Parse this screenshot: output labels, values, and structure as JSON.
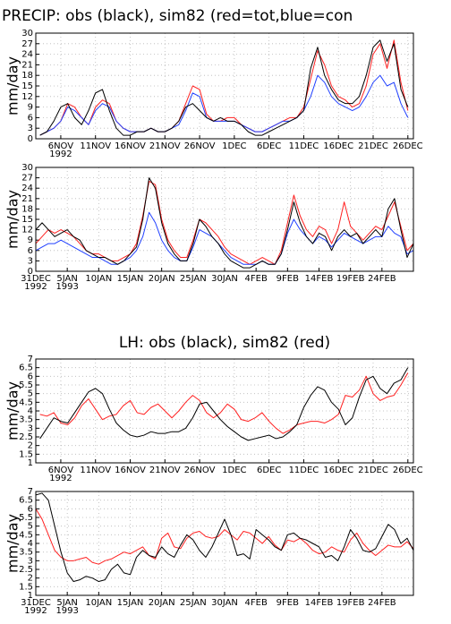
{
  "chart_data": [
    {
      "type": "line",
      "title": "PRECIP: obs (black), sim82 (red=tot,blue=con",
      "ylabel": "mm/day",
      "grid": true,
      "xlim": [
        -3.6,
        50.8
      ],
      "ylim": [
        0,
        30
      ],
      "yticks": [
        0,
        3,
        6,
        9,
        12,
        15,
        18,
        21,
        24,
        27,
        30
      ],
      "xticks": [
        {
          "value": 0,
          "label": "6NOV",
          "sublabel": "1992"
        },
        {
          "value": 5,
          "label": "11NOV"
        },
        {
          "value": 10,
          "label": "16NOV"
        },
        {
          "value": 15,
          "label": "21NOV"
        },
        {
          "value": 20,
          "label": "26NOV"
        },
        {
          "value": 25,
          "label": "1DEC"
        },
        {
          "value": 30,
          "label": "6DEC"
        },
        {
          "value": 35,
          "label": "11DEC"
        },
        {
          "value": 40,
          "label": "16DEC"
        },
        {
          "value": 45,
          "label": "21DEC"
        },
        {
          "value": 50,
          "label": "26DEC"
        }
      ],
      "x": [
        -3,
        -2,
        -1,
        0,
        1,
        2,
        3,
        4,
        5,
        6,
        7,
        8,
        9,
        10,
        11,
        12,
        13,
        14,
        15,
        16,
        17,
        18,
        19,
        20,
        21,
        22,
        23,
        24,
        25,
        26,
        27,
        28,
        29,
        30,
        31,
        32,
        33,
        34,
        35,
        36,
        37,
        38,
        39,
        40,
        41,
        42,
        43,
        44,
        45,
        46,
        47,
        48,
        49,
        50
      ],
      "series": [
        {
          "color": "#ff2020",
          "values": [
            1,
            2,
            3,
            5,
            10,
            9,
            6,
            4,
            9,
            11,
            10,
            5,
            3,
            2,
            2,
            2,
            3,
            2,
            2,
            3,
            5,
            10,
            15,
            14,
            7,
            5,
            5,
            6,
            6,
            4,
            3,
            2,
            2,
            3,
            4,
            5,
            6,
            6,
            9,
            17,
            25,
            21,
            15,
            12,
            11,
            9,
            10,
            15,
            24,
            27,
            20,
            28,
            16,
            8
          ]
        },
        {
          "color": "#2040ff",
          "values": [
            1,
            2,
            3,
            5,
            9,
            8,
            6,
            4,
            8,
            10,
            9,
            5,
            3,
            2,
            2,
            2,
            3,
            2,
            2,
            3,
            4,
            8,
            13,
            12,
            6,
            5,
            5,
            5,
            5,
            4,
            3,
            2,
            2,
            3,
            4,
            5,
            5,
            6,
            8,
            12,
            18,
            16,
            12,
            10,
            9,
            8,
            9,
            12,
            16,
            18,
            15,
            16,
            10,
            6
          ]
        },
        {
          "color": "#000000",
          "values": [
            1,
            2,
            5,
            9,
            10,
            6,
            4,
            8,
            13,
            14,
            8,
            3,
            1,
            1,
            2,
            2,
            3,
            2,
            2,
            3,
            5,
            9,
            10,
            8,
            6,
            5,
            6,
            5,
            5,
            4,
            2,
            1,
            1,
            2,
            3,
            4,
            5,
            6,
            8,
            20,
            26,
            18,
            14,
            11,
            10,
            10,
            12,
            18,
            26,
            28,
            22,
            27,
            14,
            9
          ]
        }
      ]
    },
    {
      "type": "line",
      "ylabel": "mm/day",
      "grid": true,
      "xlim": [
        0,
        60
      ],
      "ylim": [
        0,
        30
      ],
      "yticks": [
        0,
        3,
        6,
        9,
        12,
        15,
        18,
        21,
        24,
        27,
        30
      ],
      "xticks": [
        {
          "value": 0,
          "label": "31DEC",
          "sublabel": "1992"
        },
        {
          "value": 5,
          "label": "5JAN",
          "sublabel": "1993"
        },
        {
          "value": 10,
          "label": "10JAN"
        },
        {
          "value": 15,
          "label": "15JAN"
        },
        {
          "value": 20,
          "label": "20JAN"
        },
        {
          "value": 25,
          "label": "25JAN"
        },
        {
          "value": 30,
          "label": "30JAN"
        },
        {
          "value": 35,
          "label": "4FEB"
        },
        {
          "value": 40,
          "label": "9FEB"
        },
        {
          "value": 45,
          "label": "14FEB"
        },
        {
          "value": 50,
          "label": "19FEB"
        },
        {
          "value": 55,
          "label": "24FEB"
        }
      ],
      "x": [
        0,
        1,
        2,
        3,
        4,
        5,
        6,
        7,
        8,
        9,
        10,
        11,
        12,
        13,
        14,
        15,
        16,
        17,
        18,
        19,
        20,
        21,
        22,
        23,
        24,
        25,
        26,
        27,
        28,
        29,
        30,
        31,
        32,
        33,
        34,
        35,
        36,
        37,
        38,
        39,
        40,
        41,
        42,
        43,
        44,
        45,
        46,
        47,
        48,
        49,
        50,
        51,
        52,
        53,
        54,
        55,
        56,
        57,
        58,
        59,
        60
      ],
      "series": [
        {
          "color": "#ff2020",
          "values": [
            8,
            10,
            12,
            11,
            12,
            11,
            10,
            8,
            6,
            5,
            5,
            4,
            3,
            3,
            4,
            5,
            8,
            16,
            26,
            25,
            15,
            9,
            6,
            4,
            4,
            9,
            15,
            14,
            12,
            10,
            7,
            5,
            4,
            3,
            2,
            3,
            4,
            3,
            2,
            6,
            14,
            22,
            16,
            12,
            10,
            13,
            12,
            8,
            12,
            20,
            13,
            11,
            9,
            11,
            13,
            12,
            16,
            20,
            13,
            6,
            8
          ]
        },
        {
          "color": "#2040ff",
          "values": [
            6,
            7,
            8,
            8,
            9,
            8,
            7,
            6,
            5,
            4,
            4,
            3,
            2,
            2,
            3,
            4,
            6,
            10,
            17,
            14,
            9,
            6,
            4,
            3,
            3,
            7,
            12,
            11,
            10,
            8,
            6,
            4,
            3,
            2,
            2,
            2,
            3,
            2,
            2,
            5,
            11,
            15,
            12,
            10,
            8,
            10,
            9,
            7,
            9,
            11,
            10,
            9,
            8,
            9,
            10,
            10,
            13,
            11,
            10,
            5,
            6
          ]
        },
        {
          "color": "#000000",
          "values": [
            12,
            14,
            12,
            10,
            11,
            12,
            10,
            9,
            6,
            5,
            4,
            4,
            3,
            2,
            3,
            5,
            7,
            15,
            27,
            24,
            14,
            8,
            5,
            3,
            3,
            8,
            15,
            13,
            10,
            8,
            5,
            3,
            2,
            1,
            1,
            2,
            3,
            2,
            2,
            5,
            12,
            20,
            14,
            10,
            8,
            11,
            10,
            6,
            10,
            12,
            10,
            11,
            8,
            10,
            12,
            10,
            18,
            21,
            12,
            4,
            8
          ]
        }
      ]
    },
    {
      "type": "line",
      "title": "LH: obs (black), sim82 (red)",
      "ylabel": "mm/day",
      "grid": true,
      "xlim": [
        -3.6,
        50.8
      ],
      "ylim": [
        1,
        7
      ],
      "yticks": [
        1,
        1.5,
        2,
        2.5,
        3,
        3.5,
        4,
        4.5,
        5,
        5.5,
        6,
        6.5,
        7
      ],
      "xticks": [
        {
          "value": 0,
          "label": "6NOV",
          "sublabel": "1992"
        },
        {
          "value": 5,
          "label": "11NOV"
        },
        {
          "value": 10,
          "label": "16NOV"
        },
        {
          "value": 15,
          "label": "21NOV"
        },
        {
          "value": 20,
          "label": "26NOV"
        },
        {
          "value": 25,
          "label": "1DEC"
        },
        {
          "value": 30,
          "label": "6DEC"
        },
        {
          "value": 35,
          "label": "11DEC"
        },
        {
          "value": 40,
          "label": "16DEC"
        },
        {
          "value": 45,
          "label": "21DEC"
        },
        {
          "value": 50,
          "label": "26DEC"
        }
      ],
      "x": [
        -3,
        -2,
        -1,
        0,
        1,
        2,
        3,
        4,
        5,
        6,
        7,
        8,
        9,
        10,
        11,
        12,
        13,
        14,
        15,
        16,
        17,
        18,
        19,
        20,
        21,
        22,
        23,
        24,
        25,
        26,
        27,
        28,
        29,
        30,
        31,
        32,
        33,
        34,
        35,
        36,
        37,
        38,
        39,
        40,
        41,
        42,
        43,
        44,
        45,
        46,
        47,
        48,
        49,
        50
      ],
      "series": [
        {
          "color": "#ff2020",
          "values": [
            3.8,
            3.7,
            3.9,
            3.3,
            3.2,
            3.6,
            4.3,
            4.7,
            4.1,
            3.5,
            3.7,
            3.8,
            4.3,
            4.6,
            3.9,
            3.8,
            4.2,
            4.4,
            4.0,
            3.6,
            4.0,
            4.5,
            4.9,
            4.6,
            3.9,
            3.6,
            3.9,
            4.4,
            4.1,
            3.5,
            3.4,
            3.6,
            3.9,
            3.4,
            3.0,
            2.7,
            2.9,
            3.2,
            3.3,
            3.4,
            3.4,
            3.3,
            3.5,
            3.8,
            4.9,
            4.8,
            5.2,
            6.0,
            5.0,
            4.6,
            4.8,
            4.9,
            5.5,
            6.2
          ]
        },
        {
          "color": "#000000",
          "values": [
            2.4,
            3.0,
            3.6,
            3.4,
            3.3,
            3.9,
            4.5,
            5.1,
            5.3,
            5.0,
            4.1,
            3.3,
            2.9,
            2.6,
            2.5,
            2.6,
            2.8,
            2.7,
            2.7,
            2.8,
            2.8,
            3.0,
            3.6,
            4.4,
            4.5,
            4.0,
            3.5,
            3.1,
            2.8,
            2.5,
            2.3,
            2.4,
            2.5,
            2.6,
            2.4,
            2.5,
            2.8,
            3.2,
            4.2,
            4.9,
            5.4,
            5.2,
            4.5,
            4.1,
            3.2,
            3.6,
            4.8,
            5.8,
            6.0,
            5.3,
            5.0,
            5.6,
            5.8,
            6.5
          ]
        }
      ]
    },
    {
      "type": "line",
      "ylabel": "mm/day",
      "grid": true,
      "xlim": [
        0,
        60
      ],
      "ylim": [
        1,
        7
      ],
      "yticks": [
        1,
        1.5,
        2,
        2.5,
        3,
        3.5,
        4,
        4.5,
        5,
        5.5,
        6,
        6.5,
        7
      ],
      "xticks": [
        {
          "value": 0,
          "label": "31DEC",
          "sublabel": "1992"
        },
        {
          "value": 5,
          "label": "5JAN",
          "sublabel": "1993"
        },
        {
          "value": 10,
          "label": "10JAN"
        },
        {
          "value": 15,
          "label": "15JAN"
        },
        {
          "value": 20,
          "label": "20JAN"
        },
        {
          "value": 25,
          "label": "25JAN"
        },
        {
          "value": 30,
          "label": "30JAN"
        },
        {
          "value": 35,
          "label": "4FEB"
        },
        {
          "value": 40,
          "label": "9FEB"
        },
        {
          "value": 45,
          "label": "14FEB"
        },
        {
          "value": 50,
          "label": "19FEB"
        },
        {
          "value": 55,
          "label": "24FEB"
        }
      ],
      "x": [
        0,
        1,
        2,
        3,
        4,
        5,
        6,
        7,
        8,
        9,
        10,
        11,
        12,
        13,
        14,
        15,
        16,
        17,
        18,
        19,
        20,
        21,
        22,
        23,
        24,
        25,
        26,
        27,
        28,
        29,
        30,
        31,
        32,
        33,
        34,
        35,
        36,
        37,
        38,
        39,
        40,
        41,
        42,
        43,
        44,
        45,
        46,
        47,
        48,
        49,
        50,
        51,
        52,
        53,
        54,
        55,
        56,
        57,
        58,
        59,
        60
      ],
      "series": [
        {
          "color": "#ff2020",
          "values": [
            6.0,
            5.4,
            4.5,
            3.6,
            3.2,
            3.0,
            3.0,
            3.1,
            3.2,
            2.9,
            2.8,
            3.0,
            3.1,
            3.3,
            3.5,
            3.4,
            3.6,
            3.8,
            3.3,
            3.1,
            4.3,
            4.6,
            3.8,
            3.7,
            4.3,
            4.6,
            4.7,
            4.4,
            4.3,
            4.4,
            4.8,
            4.5,
            4.2,
            4.7,
            4.6,
            4.3,
            4.0,
            4.4,
            3.9,
            3.6,
            4.2,
            4.1,
            4.3,
            4.0,
            3.6,
            3.4,
            3.5,
            3.8,
            3.6,
            3.5,
            4.2,
            4.6,
            4.0,
            3.6,
            3.3,
            3.6,
            3.9,
            3.8,
            3.8,
            4.1,
            3.7
          ]
        },
        {
          "color": "#000000",
          "values": [
            6.8,
            6.9,
            6.5,
            5.0,
            3.5,
            2.3,
            1.8,
            1.9,
            2.1,
            2.0,
            1.8,
            1.9,
            2.5,
            2.8,
            2.3,
            2.2,
            3.2,
            3.6,
            3.3,
            3.2,
            3.8,
            3.4,
            3.2,
            3.9,
            4.5,
            4.2,
            3.6,
            3.2,
            3.8,
            4.6,
            5.4,
            4.5,
            3.3,
            3.4,
            3.1,
            4.8,
            4.5,
            4.2,
            3.8,
            3.6,
            4.5,
            4.6,
            4.3,
            4.2,
            4.0,
            3.8,
            3.2,
            3.3,
            3.0,
            3.8,
            4.8,
            4.3,
            3.6,
            3.5,
            3.7,
            4.4,
            5.1,
            4.8,
            4.0,
            4.3,
            3.6
          ]
        }
      ]
    }
  ]
}
